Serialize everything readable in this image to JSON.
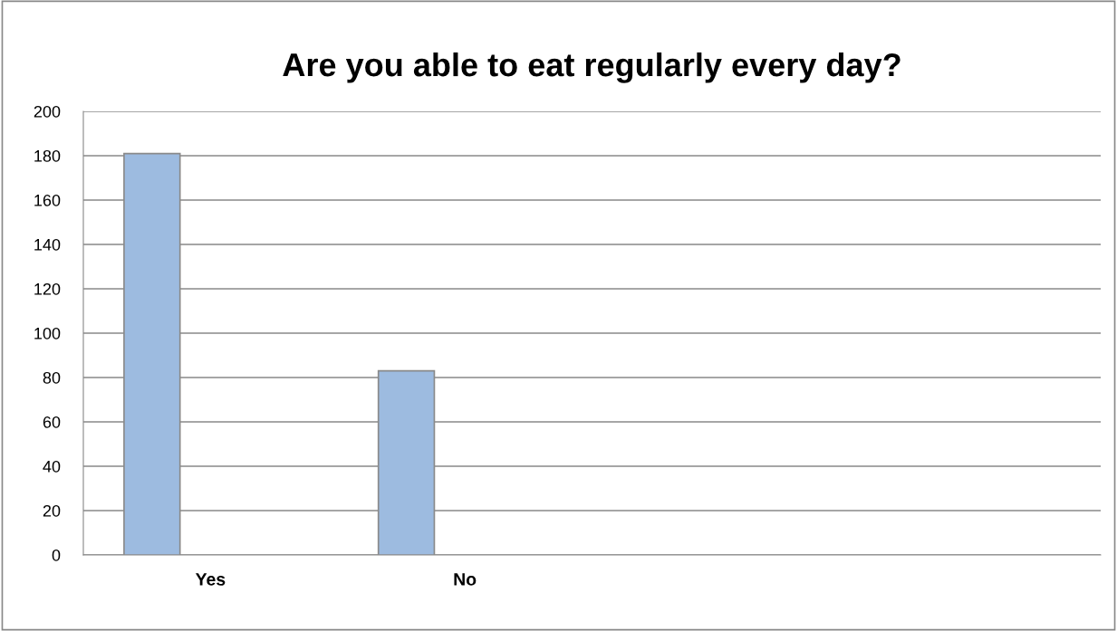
{
  "chart_data": {
    "type": "bar",
    "title": "Are you able to eat regularly every day?",
    "categories": [
      "Yes",
      "No",
      null,
      null
    ],
    "values": [
      181,
      83,
      null,
      null
    ],
    "color": "#9dbbe0",
    "ylim": [
      0,
      200
    ],
    "yticks": [
      0,
      20,
      40,
      60,
      80,
      100,
      120,
      140,
      160,
      180,
      200
    ],
    "grid": "y",
    "legend": false
  }
}
